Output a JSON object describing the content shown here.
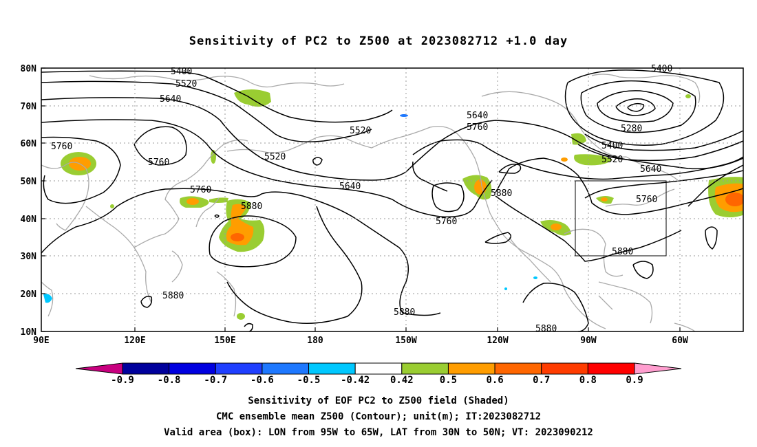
{
  "title": "Sensitivity of PC2 to Z500 at 2023082712 +1.0 day",
  "lat_labels": [
    "80N",
    "70N",
    "60N",
    "50N",
    "40N",
    "30N",
    "20N",
    "10N"
  ],
  "lon_labels": [
    "90E",
    "120E",
    "150E",
    "180",
    "150W",
    "120W",
    "90W",
    "60W"
  ],
  "contours": {
    "z5400": "5400",
    "z5400_east": "5400",
    "z5520": "5520",
    "z5640": "5640",
    "z5520_c1": "5520",
    "z5520_c2": "5520",
    "z5640_c": "5640",
    "z5760_c": "5760",
    "z5760_w1": "5760",
    "z5760_w2": "5760",
    "z5760_m": "5760",
    "z5880_m": "5880",
    "z5640_p": "5640",
    "z5760_p": "5760",
    "z5880_e": "5880",
    "z5280": "5280",
    "z5400_e": "5400",
    "z5520_e": "5520",
    "z5640_e": "5640",
    "z5760_e": "5760",
    "z5880_e2": "5880",
    "z5880_s1": "5880",
    "z5880_s2": "5880",
    "z5880_s3": "5880"
  },
  "colorbar": {
    "labels": [
      "-0.9",
      "-0.8",
      "-0.7",
      "-0.6",
      "-0.5",
      "-0.42",
      "0.42",
      "0.5",
      "0.6",
      "0.7",
      "0.8",
      "0.9"
    ],
    "colors": [
      "#00009c",
      "#0000e0",
      "#1f3fff",
      "#1e78ff",
      "#00c8ff",
      "#ffffff",
      "#9acd32",
      "#ff9d00",
      "#ff6600",
      "#ff3c00",
      "#ff0000"
    ],
    "low_extend_color": "#c8007f",
    "high_extend_color": "#ff9ecf"
  },
  "captions": {
    "line1": "Sensitivity of EOF PC2 to Z500 field (Shaded)",
    "line2": "CMC ensemble mean Z500 (Contour); unit(m); IT:2023082712",
    "line3": "Valid area (box): LON from 95W to 65W, LAT from 30N to 50N; VT: 2023090212"
  }
}
